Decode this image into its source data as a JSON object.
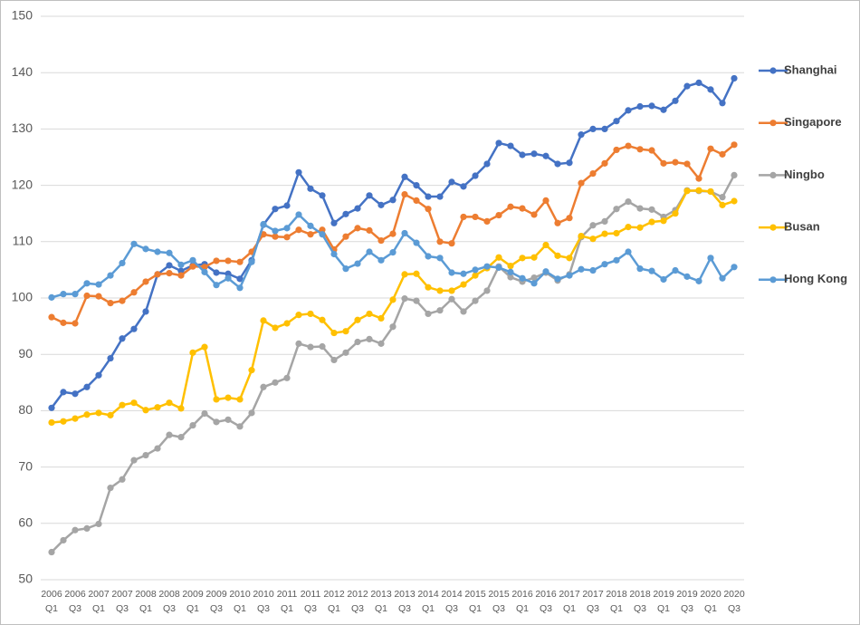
{
  "chart_data": {
    "type": "line",
    "categories": [
      "2006 Q1",
      null,
      "2006 Q3",
      null,
      "2007 Q1",
      null,
      "2007 Q3",
      null,
      "2008 Q1",
      null,
      "2008 Q3",
      null,
      "2009 Q1",
      null,
      "2009 Q3",
      null,
      "2010 Q1",
      null,
      "2010 Q3",
      null,
      "2011 Q1",
      null,
      "2011 Q3",
      null,
      "2012 Q1",
      null,
      "2012 Q3",
      null,
      "2013 Q1",
      null,
      "2013 Q3",
      null,
      "2014 Q1",
      null,
      "2014 Q3",
      null,
      "2015 Q1",
      null,
      "2015 Q3",
      null,
      "2016 Q1",
      null,
      "2016 Q3",
      null,
      "2017 Q1",
      null,
      "2017 Q3",
      null,
      "2018 Q1",
      null,
      "2018 Q3",
      null,
      "2019 Q1",
      null,
      "2019 Q3",
      null,
      "2020 Q1",
      null,
      "2020 Q3"
    ],
    "series": [
      {
        "name": "Shanghai",
        "color": "#4472c4",
        "values": [
          80.5,
          83.3,
          83,
          84.2,
          86.3,
          89.3,
          92.8,
          94.5,
          97.6,
          104.2,
          105.8,
          104.8,
          105.8,
          106,
          104.5,
          104.3,
          103.4,
          106.7,
          113,
          115.8,
          116.4,
          122.3,
          119.4,
          118.2,
          113.3,
          114.9,
          115.9,
          118.2,
          116.5,
          117.4,
          121.5,
          120,
          118,
          118,
          120.6,
          119.8,
          121.7,
          123.8,
          127.5,
          127,
          125.4,
          125.6,
          125.2,
          123.8,
          124,
          129,
          130,
          130,
          131.4,
          133.3,
          134,
          134.1,
          133.4,
          135,
          137.6,
          138.2,
          137,
          134.6,
          139
        ]
      },
      {
        "name": "Singapore",
        "color": "#ed7d31",
        "values": [
          96.6,
          95.6,
          95.5,
          100.4,
          100.3,
          99.1,
          99.5,
          101,
          102.9,
          104.2,
          104.4,
          104,
          105.6,
          105.5,
          106.6,
          106.6,
          106.4,
          108.2,
          111.3,
          110.9,
          110.8,
          112.1,
          111.3,
          112.1,
          108.6,
          110.9,
          112.4,
          112,
          110.2,
          111.4,
          118.4,
          117.3,
          115.8,
          110,
          109.7,
          114.4,
          114.4,
          113.6,
          114.7,
          116.2,
          115.9,
          114.8,
          117.3,
          113.3,
          114.2,
          120.4,
          122.1,
          123.9,
          126.3,
          127,
          126.4,
          126.2,
          123.9,
          124.1,
          123.8,
          121.2,
          126.5,
          125.5,
          127.2
        ]
      },
      {
        "name": "Ningbo",
        "color": "#a5a5a5",
        "values": [
          54.9,
          57,
          58.8,
          59.1,
          59.9,
          66.3,
          67.8,
          71.2,
          72.1,
          73.3,
          75.7,
          75.3,
          77.4,
          79.5,
          78,
          78.4,
          77.2,
          79.6,
          84.2,
          85,
          85.8,
          91.9,
          91.3,
          91.4,
          89,
          90.3,
          92.2,
          92.7,
          91.9,
          94.9,
          99.9,
          99.5,
          97.2,
          97.8,
          99.8,
          97.6,
          99.5,
          101.3,
          105.6,
          103.7,
          102.9,
          103.6,
          104.5,
          103.1,
          104.2,
          110.8,
          112.9,
          113.6,
          115.8,
          117.1,
          115.9,
          115.7,
          114.4,
          115.6,
          119.1,
          119,
          118.9,
          117.9,
          121.8
        ]
      },
      {
        "name": "Busan",
        "color": "#ffc000",
        "values": [
          77.9,
          78.1,
          78.6,
          79.3,
          79.6,
          79.2,
          81,
          81.4,
          80.1,
          80.6,
          81.4,
          80.4,
          90.3,
          91.3,
          82,
          82.3,
          82,
          87.2,
          96,
          94.7,
          95.5,
          97,
          97.2,
          96.1,
          93.8,
          94.1,
          96.1,
          97.2,
          96.4,
          99.7,
          104.2,
          104.3,
          101.9,
          101.3,
          101.3,
          102.4,
          104,
          105.3,
          107.2,
          105.7,
          107.1,
          107.2,
          109.4,
          107.5,
          107.1,
          111,
          110.5,
          111.4,
          111.5,
          112.6,
          112.5,
          113.5,
          113.7,
          115,
          119,
          119.1,
          118.9,
          116.5,
          117.2
        ]
      },
      {
        "name": "Hong Kong",
        "color": "#5b9bd5",
        "values": [
          100.1,
          100.7,
          100.7,
          102.6,
          102.4,
          104,
          106.2,
          109.6,
          108.7,
          108.2,
          108,
          105.9,
          106.7,
          104.6,
          102.3,
          103.5,
          101.8,
          106.4,
          113.1,
          111.9,
          112.4,
          114.8,
          112.8,
          111.3,
          107.8,
          105.2,
          106.1,
          108.2,
          106.7,
          108.1,
          111.5,
          109.8,
          107.4,
          107.1,
          104.5,
          104.3,
          105,
          105.6,
          105.4,
          104.6,
          103.5,
          102.6,
          104.7,
          103.4,
          104,
          105.1,
          104.9,
          106,
          106.7,
          108.2,
          105.2,
          104.8,
          103.3,
          104.9,
          103.8,
          103,
          107.1,
          103.5,
          105.5
        ]
      }
    ],
    "ylim": [
      50,
      150
    ],
    "yticks": [
      50,
      60,
      70,
      80,
      90,
      100,
      110,
      120,
      130,
      140,
      150
    ],
    "grid": true,
    "legend": "right"
  }
}
